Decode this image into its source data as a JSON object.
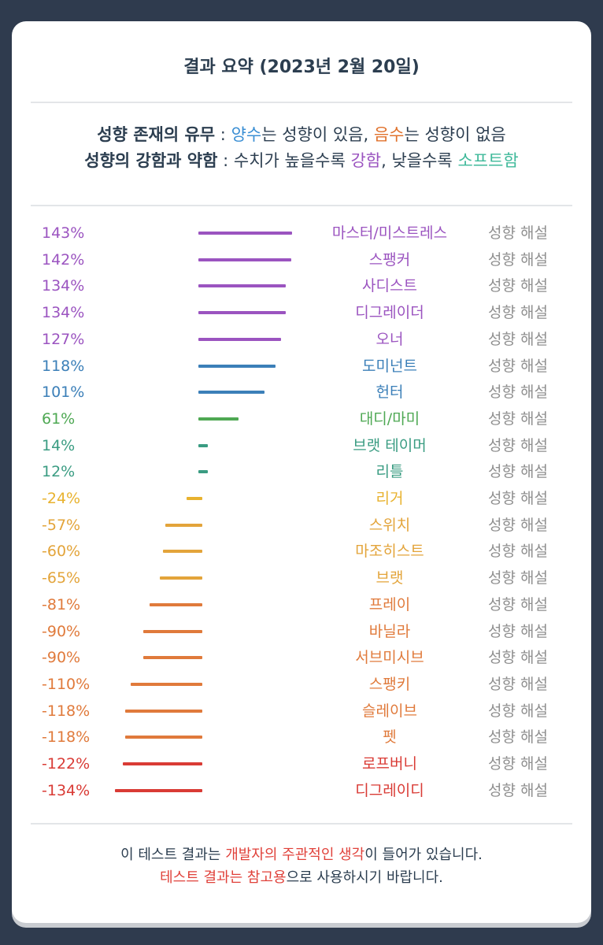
{
  "title": "결과 요약 (2023년 2월 20일)",
  "legend": {
    "line1": {
      "label": "성향 존재의 유무",
      "sep": " : ",
      "positive_word": "양수",
      "positive_rest": "는 성향이 있음, ",
      "negative_word": "음수",
      "negative_rest": "는 성향이 없음"
    },
    "line2": {
      "label": "성향의 강함과 약함",
      "sep": " : 수치가 높을수록 ",
      "strong_word": "강함",
      "mid": ", 낮을수록 ",
      "soft_word": "소프트함"
    }
  },
  "colors": {
    "purple": "#9b54c0",
    "blue": "#3b7fb8",
    "green": "#4ea853",
    "teal": "#3a9c82",
    "yellow": "#e8b22e",
    "orange": "#e07a3b",
    "red": "#d93b35"
  },
  "results": [
    {
      "percent": "143%",
      "value": 143,
      "name": "마스터/미스트레스",
      "link": "성향 해설",
      "color": "#9b54c0"
    },
    {
      "percent": "142%",
      "value": 142,
      "name": "스팽커",
      "link": "성향 해설",
      "color": "#9b54c0"
    },
    {
      "percent": "134%",
      "value": 134,
      "name": "사디스트",
      "link": "성향 해설",
      "color": "#9b54c0"
    },
    {
      "percent": "134%",
      "value": 134,
      "name": "디그레이더",
      "link": "성향 해설",
      "color": "#9b54c0"
    },
    {
      "percent": "127%",
      "value": 127,
      "name": "오너",
      "link": "성향 해설",
      "color": "#9b54c0"
    },
    {
      "percent": "118%",
      "value": 118,
      "name": "도미넌트",
      "link": "성향 해설",
      "color": "#3b7fb8"
    },
    {
      "percent": "101%",
      "value": 101,
      "name": "헌터",
      "link": "성향 해설",
      "color": "#3b7fb8"
    },
    {
      "percent": "61%",
      "value": 61,
      "name": "대디/마미",
      "link": "성향 해설",
      "color": "#4ea853"
    },
    {
      "percent": "14%",
      "value": 14,
      "name": "브랫 테이머",
      "link": "성향 해설",
      "color": "#3a9c82"
    },
    {
      "percent": "12%",
      "value": 12,
      "name": "리틀",
      "link": "성향 해설",
      "color": "#3a9c82"
    },
    {
      "percent": "-24%",
      "value": -24,
      "name": "리거",
      "link": "성향 해설",
      "color": "#e8b22e"
    },
    {
      "percent": "-57%",
      "value": -57,
      "name": "스위치",
      "link": "성향 해설",
      "color": "#e3a43a"
    },
    {
      "percent": "-60%",
      "value": -60,
      "name": "마조히스트",
      "link": "성향 해설",
      "color": "#e3a43a"
    },
    {
      "percent": "-65%",
      "value": -65,
      "name": "브랫",
      "link": "성향 해설",
      "color": "#e3a43a"
    },
    {
      "percent": "-81%",
      "value": -81,
      "name": "프레이",
      "link": "성향 해설",
      "color": "#e07a3b"
    },
    {
      "percent": "-90%",
      "value": -90,
      "name": "바닐라",
      "link": "성향 해설",
      "color": "#e07a3b"
    },
    {
      "percent": "-90%",
      "value": -90,
      "name": "서브미시브",
      "link": "성향 해설",
      "color": "#e07a3b"
    },
    {
      "percent": "-110%",
      "value": -110,
      "name": "스팽키",
      "link": "성향 해설",
      "color": "#e07a3b"
    },
    {
      "percent": "-118%",
      "value": -118,
      "name": "슬레이브",
      "link": "성향 해설",
      "color": "#e07a3b"
    },
    {
      "percent": "-118%",
      "value": -118,
      "name": "펫",
      "link": "성향 해설",
      "color": "#e07a3b"
    },
    {
      "percent": "-122%",
      "value": -122,
      "name": "로프버니",
      "link": "성향 해설",
      "color": "#d93b35"
    },
    {
      "percent": "-134%",
      "value": -134,
      "name": "디그레이디",
      "link": "성향 해설",
      "color": "#d93b35"
    }
  ],
  "footer": {
    "line1_a": "이 테스트 결과는 ",
    "line1_highlight": "개발자의 주관적인 생각",
    "line1_b": "이 들어가 있습니다.",
    "line2_highlight": "테스트 결과는 참고용",
    "line2_b": "으로 사용하시기 바랍니다."
  }
}
